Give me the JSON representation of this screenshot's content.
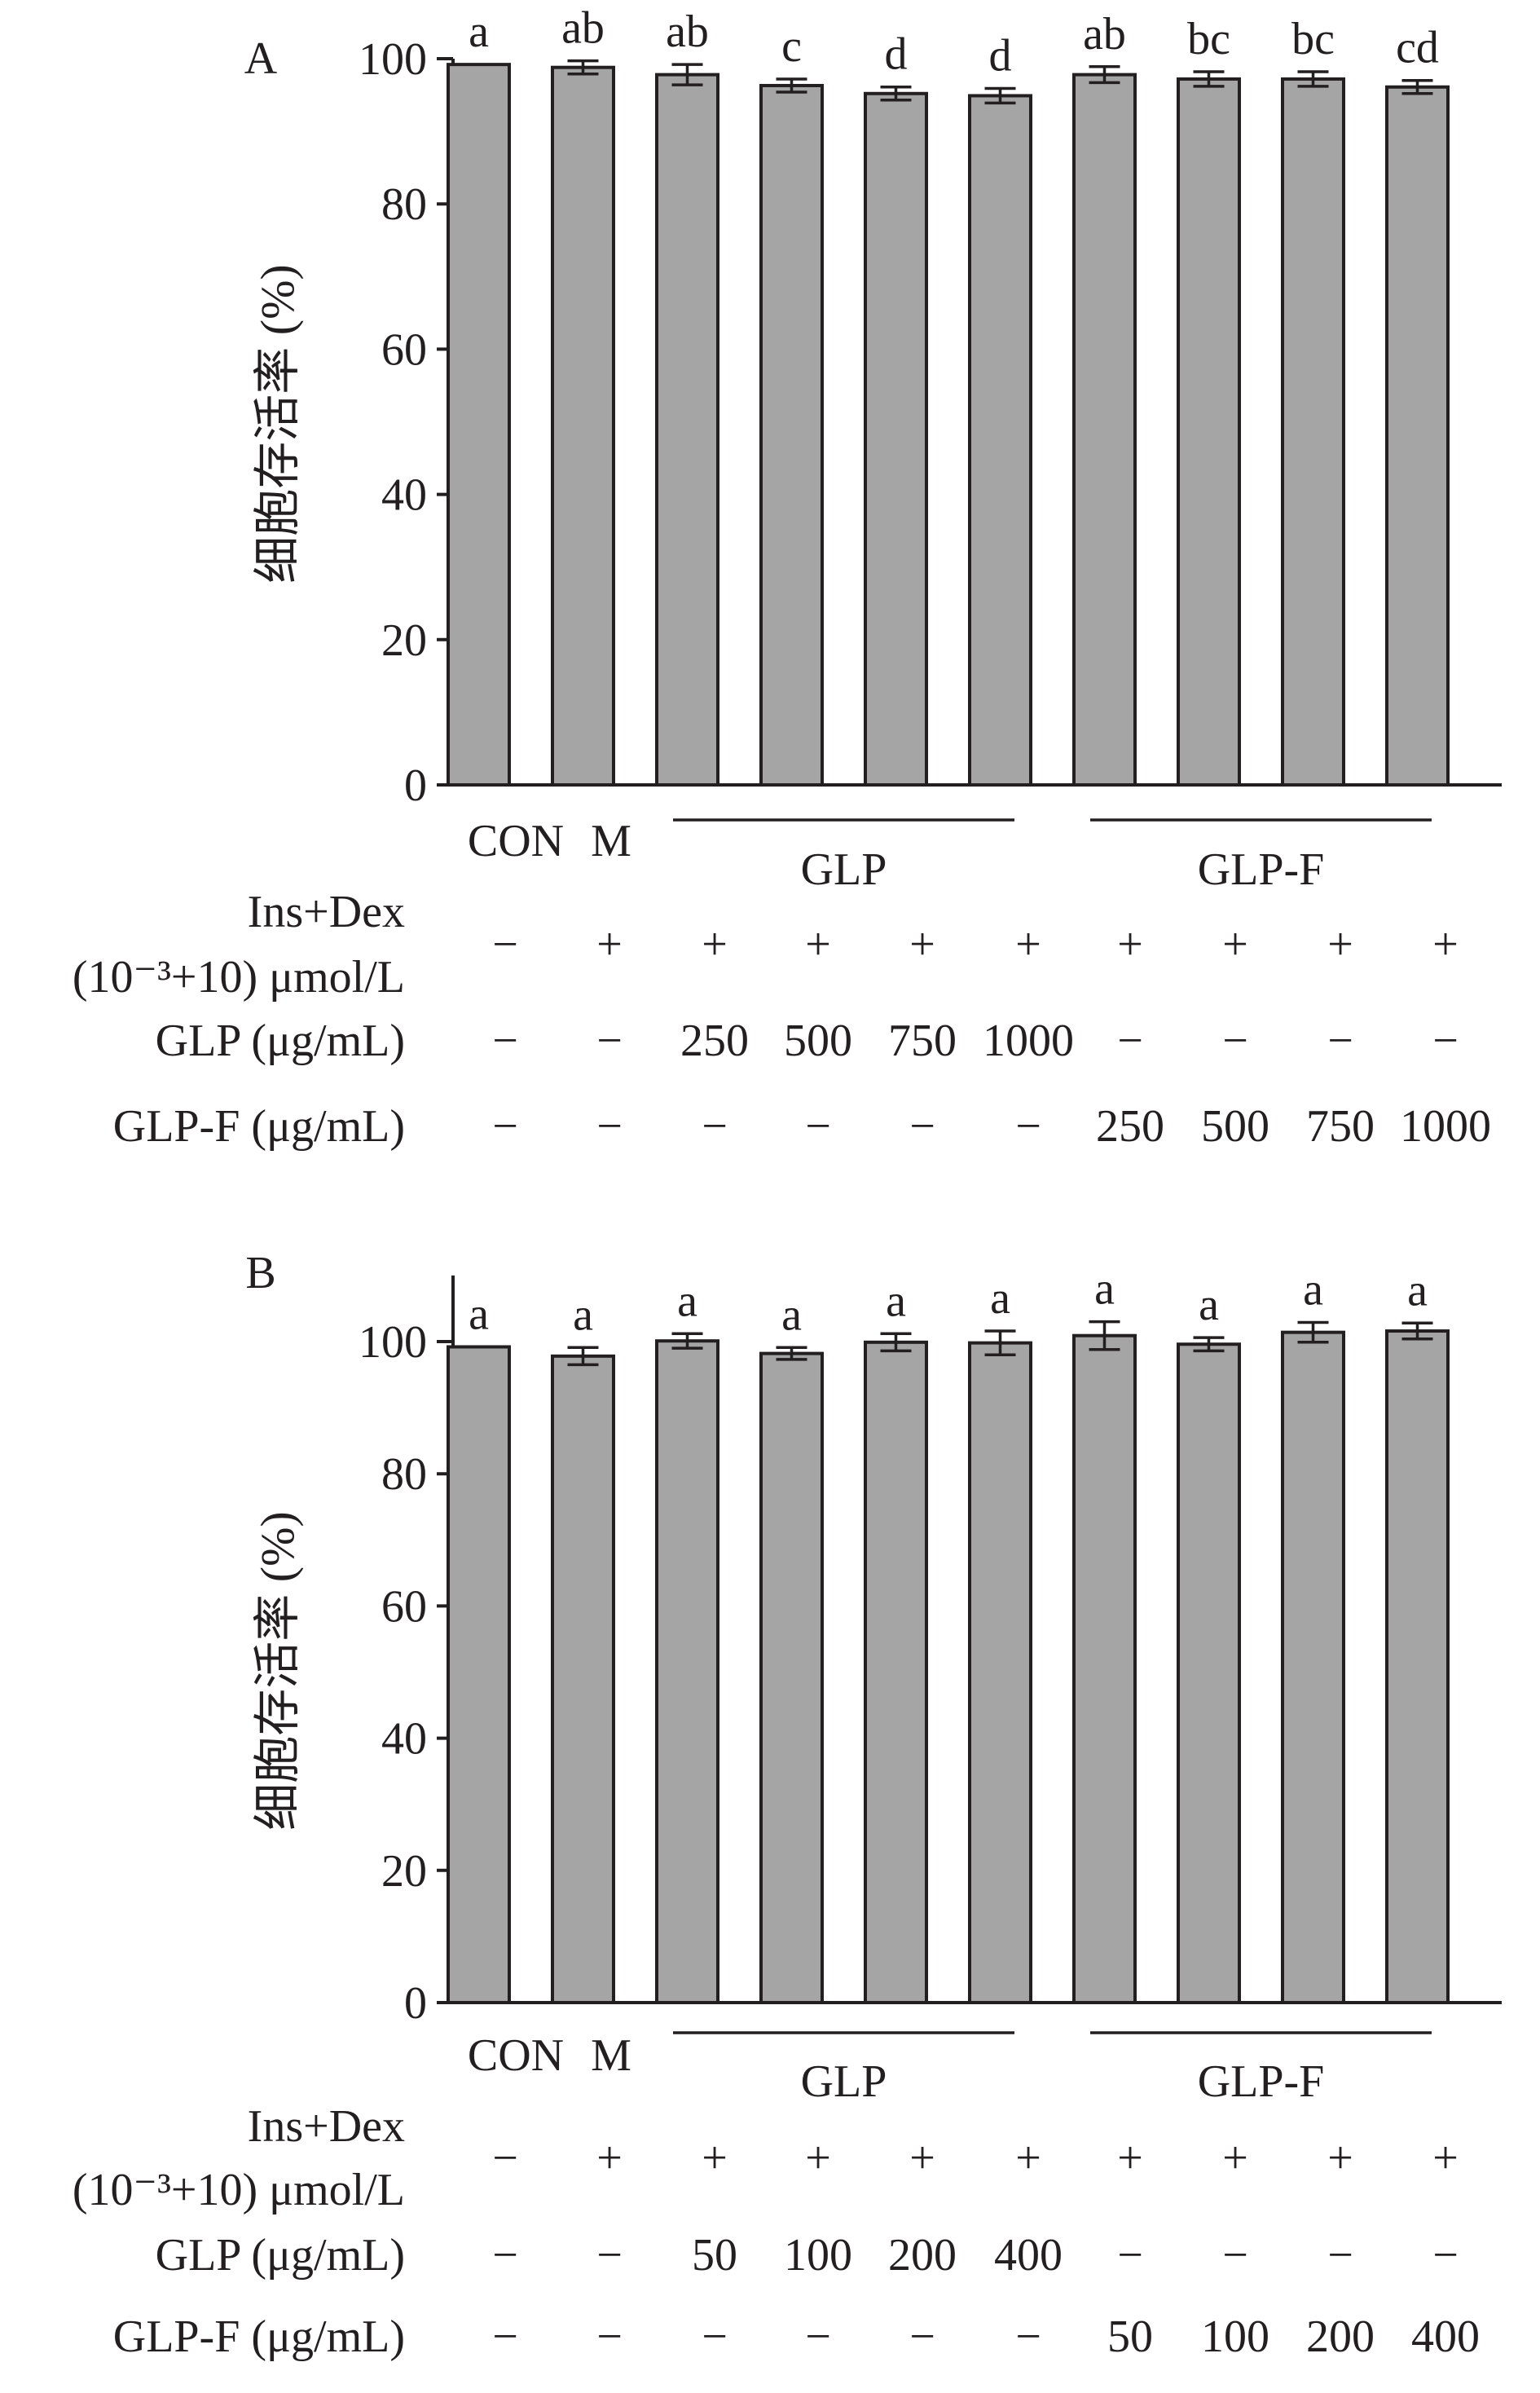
{
  "chart_data": [
    {
      "type": "bar",
      "panel_label": "A",
      "ylabel": "细胞存活率 (%)",
      "ylim": [
        0,
        100
      ],
      "yticks": [
        "0",
        "20",
        "40",
        "60",
        "80",
        "100"
      ],
      "categories": [
        "CON",
        "M",
        "",
        "",
        "",
        "",
        "",
        "",
        "",
        ""
      ],
      "values": [
        99.2,
        98.8,
        97.8,
        96.3,
        95.2,
        94.9,
        97.8,
        97.2,
        97.2,
        96.1
      ],
      "errors": [
        0.0,
        0.9,
        1.4,
        0.9,
        0.9,
        1.0,
        1.1,
        1.0,
        1.0,
        0.9
      ],
      "letters": [
        "a",
        "ab",
        "ab",
        "c",
        "d",
        "d",
        "ab",
        "bc",
        "bc",
        "cd"
      ],
      "groups": [
        {
          "label": "GLP",
          "from": 2,
          "to": 5
        },
        {
          "label": "GLP-F",
          "from": 6,
          "to": 9
        }
      ],
      "conditions": [
        {
          "label_lines": [
            "Ins+Dex",
            "(10⁻³+10) μmol/L"
          ],
          "values": [
            "−",
            "+",
            "+",
            "+",
            "+",
            "+",
            "+",
            "+",
            "+",
            "+"
          ]
        },
        {
          "label_lines": [
            "GLP (μg/mL)"
          ],
          "values": [
            "−",
            "−",
            "250",
            "500",
            "750",
            "1000",
            "−",
            "−",
            "−",
            "−"
          ]
        },
        {
          "label_lines": [
            "GLP-F (μg/mL)"
          ],
          "values": [
            "−",
            "−",
            "−",
            "−",
            "−",
            "−",
            "250",
            "500",
            "750",
            "1000"
          ]
        }
      ]
    },
    {
      "type": "bar",
      "panel_label": "B",
      "ylabel": "细胞存活率 (%)",
      "ylim": [
        0,
        110
      ],
      "yticks": [
        "0",
        "20",
        "40",
        "60",
        "80",
        "100"
      ],
      "categories": [
        "CON",
        "M",
        "",
        "",
        "",
        "",
        "",
        "",
        "",
        ""
      ],
      "values": [
        99.2,
        97.8,
        100.1,
        98.2,
        99.9,
        99.8,
        100.9,
        99.6,
        101.4,
        101.6
      ],
      "errors": [
        0.0,
        1.3,
        1.1,
        0.9,
        1.3,
        1.8,
        2.1,
        1.0,
        1.5,
        1.2
      ],
      "letters": [
        "a",
        "a",
        "a",
        "a",
        "a",
        "a",
        "a",
        "a",
        "a",
        "a"
      ],
      "groups": [
        {
          "label": "GLP",
          "from": 2,
          "to": 5
        },
        {
          "label": "GLP-F",
          "from": 6,
          "to": 9
        }
      ],
      "conditions": [
        {
          "label_lines": [
            "Ins+Dex",
            "(10⁻³+10) μmol/L"
          ],
          "values": [
            "−",
            "+",
            "+",
            "+",
            "+",
            "+",
            "+",
            "+",
            "+",
            "+"
          ]
        },
        {
          "label_lines": [
            "GLP (μg/mL)"
          ],
          "values": [
            "−",
            "−",
            "50",
            "100",
            "200",
            "400",
            "−",
            "−",
            "−",
            "−"
          ]
        },
        {
          "label_lines": [
            "GLP-F (μg/mL)"
          ],
          "values": [
            "−",
            "−",
            "−",
            "−",
            "−",
            "−",
            "50",
            "100",
            "200",
            "400"
          ]
        }
      ]
    }
  ]
}
